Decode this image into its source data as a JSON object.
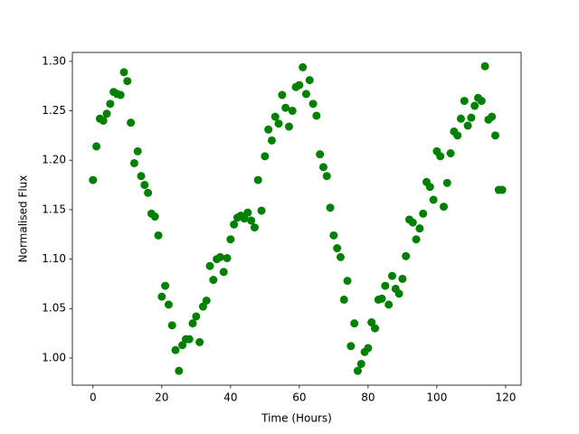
{
  "chart_data": {
    "type": "scatter",
    "xlabel": "Time (Hours)",
    "ylabel": "Normalised Flux",
    "color": "#008000",
    "xlim": [
      -6,
      124.5
    ],
    "ylim": [
      0.9725,
      1.309
    ],
    "xticks": [
      0,
      20,
      40,
      60,
      80,
      100,
      120
    ],
    "yticks": [
      {
        "value": 1.0,
        "label": "1.00"
      },
      {
        "value": 1.05,
        "label": "1.05"
      },
      {
        "value": 1.1,
        "label": "1.10"
      },
      {
        "value": 1.15,
        "label": "1.15"
      },
      {
        "value": 1.2,
        "label": "1.20"
      },
      {
        "value": 1.25,
        "label": "1.25"
      },
      {
        "value": 1.3,
        "label": "1.30"
      }
    ],
    "x": [
      0,
      1,
      2,
      3,
      4,
      5,
      6,
      7,
      8,
      9,
      10,
      11,
      12,
      13,
      14,
      15,
      16,
      17,
      18,
      19,
      20,
      21,
      22,
      23,
      24,
      25,
      26,
      27,
      28,
      29,
      30,
      31,
      32,
      33,
      34,
      35,
      36,
      37,
      38,
      39,
      40,
      41,
      42,
      43,
      44,
      45,
      46,
      47,
      48,
      49,
      50,
      51,
      52,
      53,
      54,
      55,
      56,
      57,
      58,
      59,
      60,
      61,
      62,
      63,
      64,
      65,
      66,
      67,
      68,
      69,
      70,
      71,
      72,
      73,
      74,
      75,
      76,
      77,
      78,
      79,
      80,
      81,
      82,
      83,
      84,
      85,
      86,
      87,
      88,
      89,
      90,
      91,
      92,
      93,
      94,
      95,
      96,
      97,
      98,
      99,
      100,
      101,
      102,
      103,
      104,
      105,
      106,
      107,
      108,
      109,
      110,
      111,
      112,
      113,
      114,
      115,
      116,
      117,
      118,
      119
    ],
    "values": [
      1.18,
      1.214,
      1.242,
      1.24,
      1.247,
      1.257,
      1.269,
      1.267,
      1.266,
      1.289,
      1.28,
      1.238,
      1.197,
      1.209,
      1.184,
      1.175,
      1.167,
      1.146,
      1.143,
      1.124,
      1.062,
      1.073,
      1.054,
      1.033,
      1.008,
      0.987,
      1.013,
      1.019,
      1.019,
      1.035,
      1.042,
      1.016,
      1.052,
      1.058,
      1.093,
      1.079,
      1.1,
      1.102,
      1.087,
      1.101,
      1.12,
      1.135,
      1.142,
      1.144,
      1.141,
      1.147,
      1.139,
      1.132,
      1.18,
      1.149,
      1.204,
      1.231,
      1.22,
      1.244,
      1.237,
      1.266,
      1.253,
      1.234,
      1.25,
      1.274,
      1.276,
      1.294,
      1.267,
      1.281,
      1.257,
      1.245,
      1.206,
      1.193,
      1.184,
      1.152,
      1.124,
      1.111,
      1.102,
      1.059,
      1.078,
      1.012,
      1.035,
      0.987,
      0.994,
      1.006,
      1.01,
      1.036,
      1.03,
      1.059,
      1.06,
      1.073,
      1.054,
      1.083,
      1.07,
      1.065,
      1.08,
      1.103,
      1.14,
      1.137,
      1.12,
      1.131,
      1.146,
      1.178,
      1.173,
      1.16,
      1.209,
      1.204,
      1.153,
      1.177,
      1.207,
      1.229,
      1.225,
      1.242,
      1.26,
      1.235,
      1.243,
      1.255,
      1.263,
      1.26,
      1.295,
      1.241,
      1.244,
      1.225,
      1.17,
      1.17
    ]
  }
}
